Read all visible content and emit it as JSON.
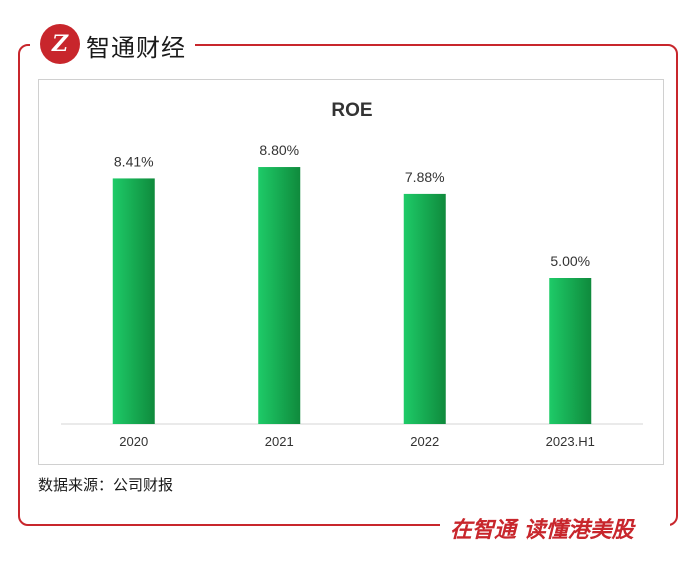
{
  "header": {
    "logo_text": "Z",
    "brand": "智通财经"
  },
  "footer": {
    "slogan": "在智通 读懂港美股",
    "source": "数据来源：公司财报"
  },
  "colors": {
    "accent": "#c8262c",
    "bar_light": "#1ecb68",
    "bar_dark": "#0f8a3c"
  },
  "chart_data": {
    "type": "bar",
    "title": "ROE",
    "categories": [
      "2020",
      "2021",
      "2022",
      "2023.H1"
    ],
    "values": [
      8.41,
      8.8,
      7.88,
      5.0
    ],
    "labels": [
      "8.41%",
      "8.80%",
      "7.88%",
      "5.00%"
    ],
    "ylim": [
      0,
      10
    ],
    "grid": false,
    "legend": "none"
  }
}
